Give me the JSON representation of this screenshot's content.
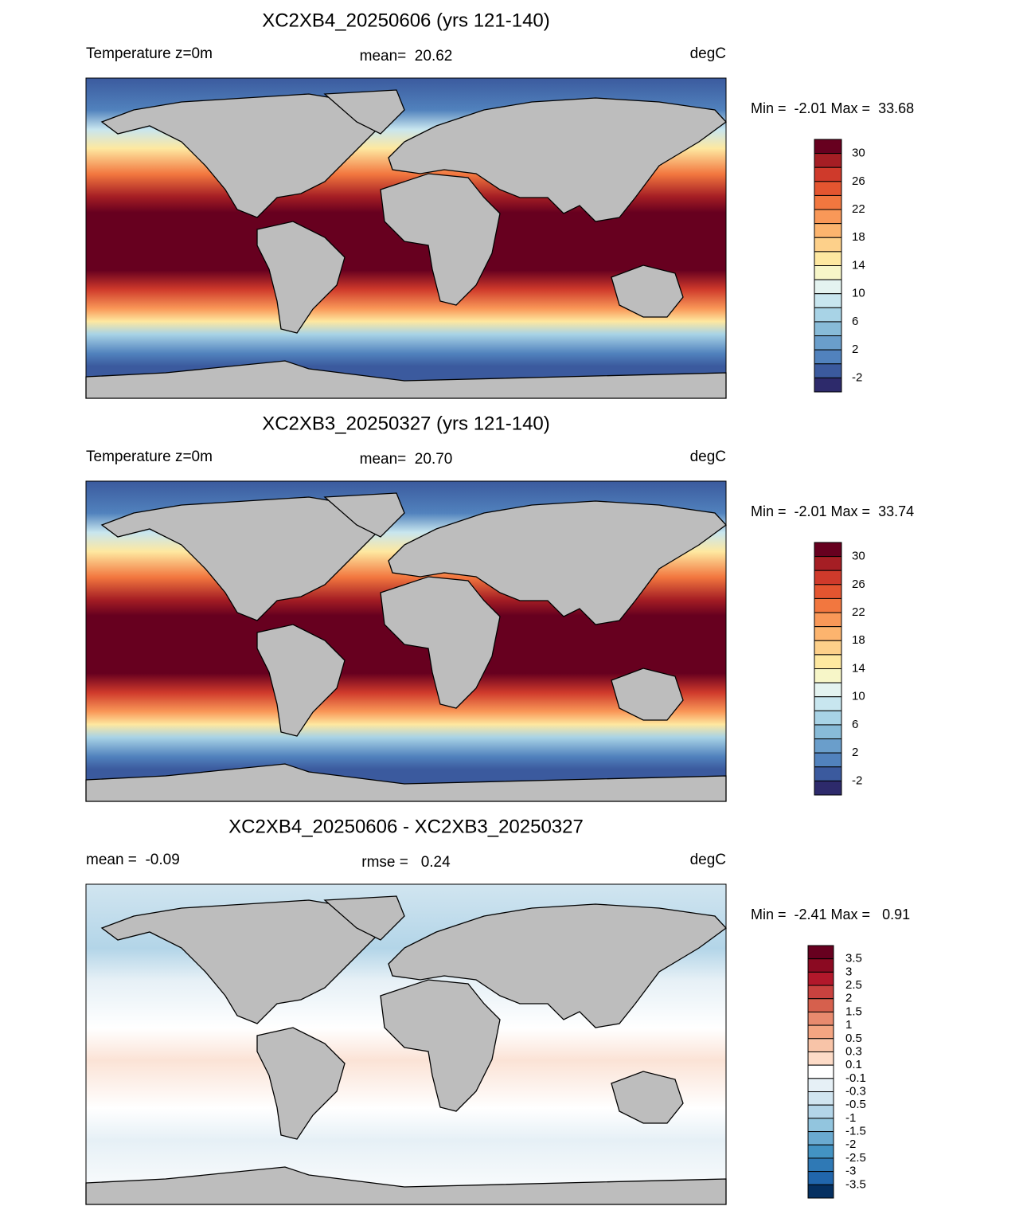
{
  "panels": [
    {
      "title": "XC2XB4_20250606 (yrs 121-140)",
      "left": "Temperature z=0m",
      "center": "mean=  20.62",
      "right": "degC",
      "range": "Min =  -2.01 Max =  33.68",
      "colorbar": {
        "colors": [
          "#67001f",
          "#a51e24",
          "#cf3a2b",
          "#e45530",
          "#f2773f",
          "#f99858",
          "#fcb46e",
          "#fdd08a",
          "#fee8a0",
          "#f7f6c8",
          "#e4f3f0",
          "#c8e6ef",
          "#a8d3e6",
          "#88bbd8",
          "#6a9ecb",
          "#5182bd",
          "#3b5a9e",
          "#2d2a6b"
        ],
        "labels": [
          "30",
          "26",
          "22",
          "18",
          "14",
          "10",
          "6",
          "2",
          "-2"
        ]
      }
    },
    {
      "title": "XC2XB3_20250327 (yrs 121-140)",
      "left": "Temperature z=0m",
      "center": "mean=  20.70",
      "right": "degC",
      "range": "Min =  -2.01 Max =  33.74",
      "colorbar": {
        "colors": [
          "#67001f",
          "#a51e24",
          "#cf3a2b",
          "#e45530",
          "#f2773f",
          "#f99858",
          "#fcb46e",
          "#fdd08a",
          "#fee8a0",
          "#f7f6c8",
          "#e4f3f0",
          "#c8e6ef",
          "#a8d3e6",
          "#88bbd8",
          "#6a9ecb",
          "#5182bd",
          "#3b5a9e",
          "#2d2a6b"
        ],
        "labels": [
          "30",
          "26",
          "22",
          "18",
          "14",
          "10",
          "6",
          "2",
          "-2"
        ]
      }
    },
    {
      "title": "XC2XB4_20250606 - XC2XB3_20250327",
      "left": "mean =  -0.09",
      "center": "rmse =   0.24",
      "right": "degC",
      "range": "Min =  -2.41 Max =   0.91",
      "colorbar": {
        "colors": [
          "#67001f",
          "#8b0a22",
          "#b2182b",
          "#c9423f",
          "#d6604d",
          "#e88a6e",
          "#f4a582",
          "#f8c4a8",
          "#fddbc7",
          "#ffffff",
          "#e6f0f6",
          "#d1e5f0",
          "#b3d5e8",
          "#92c5de",
          "#6aaad0",
          "#4393c3",
          "#2f79b5",
          "#2166ac",
          "#053061"
        ],
        "labels": [
          "3.5",
          "3",
          "2.5",
          "2",
          "1.5",
          "1",
          "0.5",
          "0.3",
          "0.1",
          "-0.1",
          "-0.3",
          "-0.5",
          "-1",
          "-1.5",
          "-2",
          "-2.5",
          "-3",
          "-3.5"
        ]
      }
    }
  ]
}
